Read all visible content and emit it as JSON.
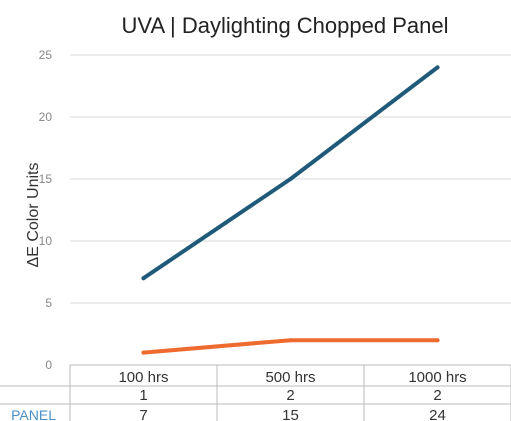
{
  "chart_data": {
    "type": "line",
    "title": "UVA | Daylighting Chopped Panel",
    "xlabel": "",
    "ylabel": "ΔE Color Units",
    "categories": [
      "100 hrs",
      "500 hrs",
      "1000 hrs"
    ],
    "ylim": [
      0,
      25
    ],
    "yticks": [
      0,
      5,
      10,
      15,
      20,
      25
    ],
    "grid": true,
    "series": [
      {
        "name": "",
        "values": [
          1,
          2,
          2
        ],
        "color": "#ee6a2f"
      },
      {
        "name": "PANEL",
        "values": [
          7,
          15,
          24
        ],
        "color": "#1f5a7a"
      }
    ]
  },
  "table": {
    "rows": [
      {
        "label": "",
        "values": [
          "1",
          "2",
          "2"
        ]
      },
      {
        "label": "PANEL",
        "values": [
          "7",
          "15",
          "24"
        ]
      }
    ]
  },
  "colors": {
    "grid": "#d9d9d9",
    "table_border": "#bbbbbb",
    "row_label": "#4a90c8"
  }
}
